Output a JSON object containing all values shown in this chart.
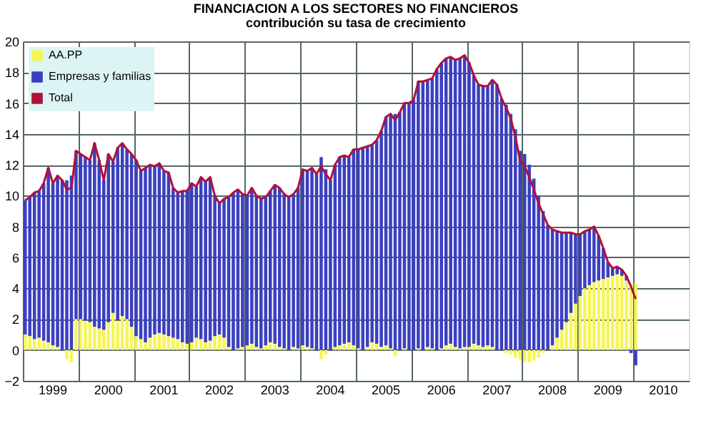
{
  "chart_data": {
    "type": "bar",
    "stacked": true,
    "title": "FINANCIACION A LOS SECTORES NO FINANCIEROS",
    "subtitle": "contribución su tasa de crecimiento",
    "categories": [
      null,
      null,
      null,
      null,
      null,
      null,
      "1999",
      null,
      null,
      null,
      null,
      null,
      null,
      null,
      null,
      null,
      null,
      null,
      "2000",
      null,
      null,
      null,
      null,
      null,
      null,
      null,
      null,
      null,
      null,
      null,
      "2001",
      null,
      null,
      null,
      null,
      null,
      null,
      null,
      null,
      null,
      null,
      null,
      "2002",
      null,
      null,
      null,
      null,
      null,
      null,
      null,
      null,
      null,
      null,
      null,
      "2003",
      null,
      null,
      null,
      null,
      null,
      null,
      null,
      null,
      null,
      null,
      null,
      "2004",
      null,
      null,
      null,
      null,
      null,
      null,
      null,
      null,
      null,
      null,
      null,
      "2005",
      null,
      null,
      null,
      null,
      null,
      null,
      null,
      null,
      null,
      null,
      null,
      "2006",
      null,
      null,
      null,
      null,
      null,
      null,
      null,
      null,
      null,
      null,
      null,
      "2007",
      null,
      null,
      null,
      null,
      null,
      null,
      null,
      null,
      null,
      null,
      null,
      "2008",
      null,
      null,
      null,
      null,
      null,
      null,
      null,
      null,
      null,
      null,
      null,
      "2009",
      null,
      null,
      null,
      null,
      null,
      null,
      null,
      null,
      null,
      null,
      null,
      "2010",
      null,
      null,
      null,
      null,
      null
    ],
    "series": [
      {
        "name": "AA.PP",
        "color": "#f5f55a",
        "values": [
          1.0,
          0.9,
          0.7,
          0.8,
          0.6,
          0.5,
          0.3,
          0.2,
          0.0,
          -0.6,
          -0.8,
          2.0,
          2.0,
          1.9,
          1.8,
          1.5,
          1.4,
          1.3,
          1.8,
          2.4,
          1.9,
          2.2,
          2.0,
          1.5,
          0.9,
          0.7,
          0.5,
          0.8,
          1.0,
          1.1,
          1.0,
          0.9,
          0.8,
          0.7,
          0.5,
          0.4,
          0.5,
          0.8,
          0.7,
          0.5,
          0.6,
          0.9,
          1.0,
          0.8,
          0.2,
          0.0,
          0.1,
          0.2,
          0.3,
          0.4,
          0.2,
          0.1,
          0.3,
          0.5,
          0.4,
          0.2,
          0.1,
          0.0,
          0.2,
          0.1,
          0.3,
          0.2,
          0.1,
          0.0,
          -0.6,
          -0.3,
          0.0,
          0.2,
          0.3,
          0.4,
          0.5,
          0.3,
          0.1,
          0.0,
          0.2,
          0.5,
          0.4,
          0.2,
          0.3,
          0.1,
          -0.4,
          0.0,
          0.1,
          0.0,
          0.0,
          0.1,
          0.0,
          0.2,
          0.1,
          0.0,
          0.1,
          0.3,
          0.4,
          0.2,
          0.1,
          0.2,
          0.2,
          0.4,
          0.3,
          0.2,
          0.3,
          0.2,
          0.0,
          0.0,
          -0.2,
          -0.3,
          -0.5,
          -0.6,
          -0.8,
          -0.8,
          -0.7,
          -0.5,
          -0.2,
          0.0,
          0.3,
          0.8,
          1.3,
          1.8,
          2.4,
          3.0,
          3.5,
          4.0,
          4.2,
          4.4,
          4.5,
          4.6,
          4.7,
          4.8,
          4.9,
          4.8,
          4.5,
          4.3,
          4.3,
          null,
          null,
          null,
          null,
          null,
          null,
          null,
          null,
          null,
          null,
          null
        ]
      },
      {
        "name": "Empresas y familias",
        "color": "#3b3fc0",
        "values": [
          8.7,
          9.0,
          9.5,
          9.5,
          10.2,
          11.3,
          10.5,
          11.1,
          11.0,
          11.0,
          11.3,
          10.9,
          10.7,
          10.6,
          10.5,
          11.9,
          10.9,
          9.7,
          10.9,
          9.8,
          11.2,
          11.2,
          11.0,
          11.2,
          11.4,
          10.9,
          11.3,
          11.2,
          10.9,
          11.0,
          10.6,
          10.6,
          9.7,
          9.5,
          9.8,
          9.9,
          10.3,
          9.8,
          10.5,
          10.4,
          10.6,
          9.1,
          8.5,
          9.0,
          9.7,
          10.2,
          10.3,
          9.9,
          9.7,
          10.1,
          9.8,
          9.7,
          9.6,
          9.8,
          10.3,
          10.3,
          10.0,
          9.9,
          9.9,
          10.4,
          11.4,
          11.4,
          11.7,
          11.4,
          12.5,
          11.7,
          11.0,
          11.8,
          12.2,
          12.2,
          12.0,
          12.7,
          12.9,
          13.1,
          13.0,
          12.8,
          13.2,
          14.0,
          14.8,
          15.2,
          15.3,
          15.4,
          15.9,
          16.0,
          16.2,
          17.3,
          17.4,
          17.3,
          17.5,
          18.2,
          18.5,
          18.6,
          18.6,
          18.6,
          18.8,
          18.9,
          18.4,
          17.4,
          16.9,
          16.9,
          16.8,
          17.3,
          17.2,
          16.3,
          15.9,
          15.3,
          14.3,
          12.9,
          12.7,
          12.0,
          11.1,
          10.0,
          9.0,
          8.1,
          7.5,
          6.9,
          6.3,
          5.8,
          5.2,
          4.5,
          4.0,
          3.7,
          3.6,
          3.6,
          2.9,
          2.0,
          1.0,
          0.5,
          0.5,
          0.4,
          0.3,
          -0.2,
          -1.0,
          null,
          null,
          null,
          null,
          null,
          null,
          null,
          null,
          null,
          null,
          null
        ]
      },
      {
        "name": "Total",
        "type": "line",
        "color": "#b0103a",
        "values": [
          9.7,
          9.9,
          10.2,
          10.3,
          10.8,
          11.8,
          10.8,
          11.3,
          11.0,
          10.4,
          10.5,
          12.9,
          12.7,
          12.5,
          12.3,
          13.4,
          12.3,
          11.0,
          12.7,
          12.2,
          13.1,
          13.4,
          13.0,
          12.7,
          12.3,
          11.6,
          11.8,
          12.0,
          11.9,
          12.1,
          11.6,
          11.5,
          10.5,
          10.2,
          10.3,
          10.3,
          10.8,
          10.6,
          11.2,
          10.9,
          11.2,
          10.0,
          9.5,
          9.8,
          9.9,
          10.2,
          10.4,
          10.1,
          10.0,
          10.5,
          10.0,
          9.8,
          9.9,
          10.3,
          10.7,
          10.5,
          10.1,
          9.9,
          10.1,
          10.5,
          11.7,
          11.6,
          11.8,
          11.4,
          11.9,
          11.4,
          11.0,
          12.0,
          12.5,
          12.6,
          12.5,
          13.0,
          13.0,
          13.1,
          13.2,
          13.3,
          13.6,
          14.2,
          15.1,
          15.3,
          14.9,
          15.4,
          16.0,
          16.0,
          16.2,
          17.4,
          17.4,
          17.5,
          17.6,
          18.2,
          18.6,
          18.9,
          19.0,
          18.8,
          18.9,
          19.1,
          18.6,
          17.8,
          17.2,
          17.1,
          17.1,
          17.5,
          17.2,
          16.3,
          15.7,
          15.0,
          13.8,
          12.3,
          11.9,
          11.2,
          10.4,
          9.5,
          8.8,
          8.1,
          7.8,
          7.7,
          7.6,
          7.6,
          7.6,
          7.5,
          7.5,
          7.7,
          7.8,
          8.0,
          7.4,
          6.6,
          5.7,
          5.3,
          5.4,
          5.2,
          4.8,
          4.1,
          3.3,
          null,
          null,
          null,
          null,
          null,
          null,
          null,
          null,
          null,
          null,
          null
        ]
      }
    ],
    "ylim": [
      -2,
      20
    ],
    "yticks": [
      -2,
      0,
      2,
      4,
      6,
      8,
      10,
      12,
      14,
      16,
      18,
      20
    ],
    "grid": true,
    "legend": "top left"
  }
}
